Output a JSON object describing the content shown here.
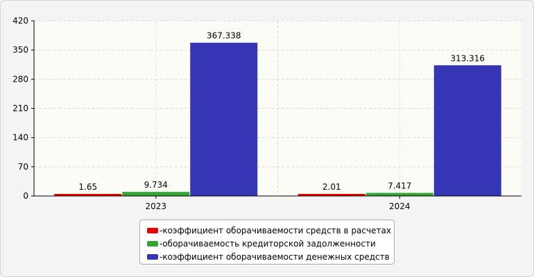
{
  "chart_data": {
    "type": "bar",
    "title": "",
    "xlabel": "",
    "ylabel": "",
    "categories": [
      "2023",
      "2024"
    ],
    "ylim": [
      0,
      420
    ],
    "yticks": [
      0,
      70,
      140,
      210,
      280,
      350,
      420
    ],
    "grid": true,
    "legend_position": "bottom",
    "series": [
      {
        "name": "коэффициент оборачиваемости средств в расчетах",
        "values": [
          1.65,
          2.01
        ],
        "labels": [
          "1.65",
          "2.01"
        ],
        "color": "#ee0000"
      },
      {
        "name": "оборачиваемость кредиторской задолженности",
        "values": [
          9.734,
          7.417
        ],
        "labels": [
          "9.734",
          "7.417"
        ],
        "color": "#33a633"
      },
      {
        "name": "коэффициент оборачиваемости денежных средств",
        "values": [
          367.338,
          313.316
        ],
        "labels": [
          "367.338",
          "313.316"
        ],
        "color": "#3535b5"
      }
    ]
  },
  "legend": {
    "prefix": "- ",
    "items": [
      "коэффициент оборачиваемости средств в расчетах",
      "оборачиваемость кредиторской задолженности",
      "коэффициент оборачиваемости денежных средств"
    ]
  }
}
